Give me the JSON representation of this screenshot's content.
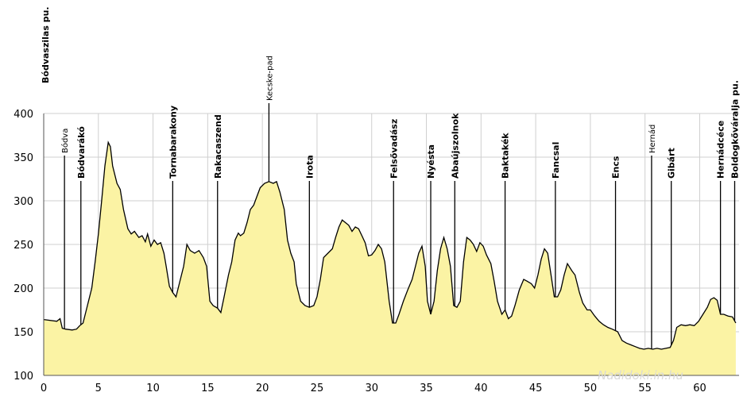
{
  "chart_data": {
    "type": "area",
    "xlim": [
      0,
      63
    ],
    "ylim": [
      100,
      400
    ],
    "x_ticks": [
      0,
      5,
      10,
      15,
      20,
      25,
      30,
      35,
      40,
      45,
      50,
      55,
      60
    ],
    "y_ticks": [
      100,
      150,
      200,
      250,
      300,
      350,
      400
    ],
    "grid": true,
    "fill_color": "#fbf3a4",
    "line_color": "#000000",
    "profile": [
      [
        0,
        164
      ],
      [
        1.2,
        162
      ],
      [
        1.5,
        165
      ],
      [
        1.7,
        154
      ],
      [
        2.0,
        153
      ],
      [
        2.6,
        152
      ],
      [
        3.0,
        153
      ],
      [
        3.3,
        157
      ],
      [
        3.6,
        160
      ],
      [
        4.0,
        180
      ],
      [
        4.4,
        200
      ],
      [
        4.7,
        230
      ],
      [
        5.0,
        262
      ],
      [
        5.3,
        300
      ],
      [
        5.6,
        340
      ],
      [
        5.9,
        367
      ],
      [
        6.1,
        362
      ],
      [
        6.3,
        340
      ],
      [
        6.7,
        320
      ],
      [
        7.0,
        313
      ],
      [
        7.3,
        290
      ],
      [
        7.7,
        268
      ],
      [
        8.0,
        262
      ],
      [
        8.3,
        265
      ],
      [
        8.7,
        258
      ],
      [
        9.0,
        260
      ],
      [
        9.3,
        253
      ],
      [
        9.5,
        262
      ],
      [
        9.8,
        248
      ],
      [
        10.1,
        255
      ],
      [
        10.4,
        250
      ],
      [
        10.7,
        252
      ],
      [
        11.0,
        240
      ],
      [
        11.2,
        225
      ],
      [
        11.5,
        202
      ],
      [
        11.8,
        195
      ],
      [
        12.1,
        190
      ],
      [
        12.4,
        205
      ],
      [
        12.8,
        225
      ],
      [
        13.1,
        250
      ],
      [
        13.4,
        243
      ],
      [
        13.8,
        240
      ],
      [
        14.2,
        243
      ],
      [
        14.6,
        235
      ],
      [
        14.9,
        225
      ],
      [
        15.2,
        185
      ],
      [
        15.5,
        180
      ],
      [
        15.9,
        177
      ],
      [
        16.2,
        172
      ],
      [
        16.5,
        190
      ],
      [
        16.9,
        215
      ],
      [
        17.2,
        230
      ],
      [
        17.5,
        255
      ],
      [
        17.8,
        263
      ],
      [
        18.0,
        260
      ],
      [
        18.3,
        263
      ],
      [
        18.6,
        275
      ],
      [
        18.9,
        290
      ],
      [
        19.2,
        295
      ],
      [
        19.5,
        305
      ],
      [
        19.8,
        315
      ],
      [
        20.2,
        320
      ],
      [
        20.6,
        322
      ],
      [
        21.0,
        320
      ],
      [
        21.3,
        322
      ],
      [
        21.6,
        310
      ],
      [
        22.0,
        290
      ],
      [
        22.3,
        255
      ],
      [
        22.6,
        240
      ],
      [
        22.9,
        230
      ],
      [
        23.1,
        205
      ],
      [
        23.5,
        185
      ],
      [
        23.9,
        180
      ],
      [
        24.3,
        178
      ],
      [
        24.7,
        180
      ],
      [
        25.0,
        190
      ],
      [
        25.3,
        210
      ],
      [
        25.6,
        235
      ],
      [
        26.0,
        240
      ],
      [
        26.4,
        245
      ],
      [
        26.7,
        258
      ],
      [
        27.0,
        270
      ],
      [
        27.3,
        278
      ],
      [
        27.6,
        275
      ],
      [
        27.9,
        272
      ],
      [
        28.2,
        265
      ],
      [
        28.5,
        270
      ],
      [
        28.8,
        268
      ],
      [
        29.1,
        260
      ],
      [
        29.4,
        252
      ],
      [
        29.7,
        237
      ],
      [
        30.0,
        238
      ],
      [
        30.3,
        243
      ],
      [
        30.6,
        250
      ],
      [
        30.9,
        245
      ],
      [
        31.2,
        230
      ],
      [
        31.6,
        185
      ],
      [
        31.9,
        160
      ],
      [
        32.2,
        160
      ],
      [
        32.5,
        170
      ],
      [
        32.9,
        185
      ],
      [
        33.3,
        198
      ],
      [
        33.7,
        210
      ],
      [
        34.0,
        225
      ],
      [
        34.3,
        240
      ],
      [
        34.6,
        248
      ],
      [
        34.9,
        225
      ],
      [
        35.1,
        185
      ],
      [
        35.4,
        170
      ],
      [
        35.7,
        185
      ],
      [
        36.0,
        220
      ],
      [
        36.3,
        245
      ],
      [
        36.6,
        258
      ],
      [
        36.9,
        245
      ],
      [
        37.2,
        225
      ],
      [
        37.5,
        180
      ],
      [
        37.8,
        178
      ],
      [
        38.1,
        185
      ],
      [
        38.4,
        230
      ],
      [
        38.7,
        258
      ],
      [
        39.0,
        255
      ],
      [
        39.3,
        250
      ],
      [
        39.6,
        242
      ],
      [
        39.9,
        252
      ],
      [
        40.2,
        248
      ],
      [
        40.5,
        238
      ],
      [
        40.9,
        228
      ],
      [
        41.2,
        208
      ],
      [
        41.5,
        185
      ],
      [
        41.9,
        170
      ],
      [
        42.2,
        175
      ],
      [
        42.5,
        165
      ],
      [
        42.8,
        168
      ],
      [
        43.1,
        180
      ],
      [
        43.5,
        198
      ],
      [
        43.9,
        210
      ],
      [
        44.2,
        208
      ],
      [
        44.6,
        205
      ],
      [
        44.9,
        200
      ],
      [
        45.2,
        215
      ],
      [
        45.5,
        233
      ],
      [
        45.8,
        245
      ],
      [
        46.1,
        240
      ],
      [
        46.4,
        215
      ],
      [
        46.7,
        190
      ],
      [
        47.0,
        190
      ],
      [
        47.3,
        198
      ],
      [
        47.6,
        215
      ],
      [
        47.9,
        228
      ],
      [
        48.3,
        220
      ],
      [
        48.6,
        215
      ],
      [
        49.0,
        195
      ],
      [
        49.3,
        183
      ],
      [
        49.7,
        175
      ],
      [
        50.0,
        175
      ],
      [
        50.4,
        168
      ],
      [
        50.8,
        162
      ],
      [
        51.2,
        158
      ],
      [
        51.6,
        155
      ],
      [
        52.0,
        153
      ],
      [
        52.5,
        150
      ],
      [
        52.9,
        140
      ],
      [
        53.3,
        137
      ],
      [
        53.7,
        135
      ],
      [
        54.1,
        133
      ],
      [
        54.5,
        131
      ],
      [
        54.9,
        130
      ],
      [
        55.3,
        131
      ],
      [
        55.7,
        130
      ],
      [
        56.1,
        131
      ],
      [
        56.5,
        130
      ],
      [
        56.9,
        131
      ],
      [
        57.3,
        132
      ],
      [
        57.6,
        140
      ],
      [
        57.9,
        155
      ],
      [
        58.3,
        158
      ],
      [
        58.7,
        157
      ],
      [
        59.1,
        158
      ],
      [
        59.5,
        157
      ],
      [
        59.9,
        162
      ],
      [
        60.3,
        170
      ],
      [
        60.7,
        178
      ],
      [
        61.0,
        187
      ],
      [
        61.3,
        189
      ],
      [
        61.6,
        186
      ],
      [
        61.9,
        170
      ],
      [
        62.2,
        170
      ],
      [
        62.6,
        168
      ],
      [
        63.0,
        167
      ],
      [
        63.3,
        160
      ]
    ],
    "waypoints": [
      {
        "name": "Bódvaszilas pu.",
        "x": 0,
        "style": "top"
      },
      {
        "name": "Bódva",
        "x": 1.9,
        "style": "river"
      },
      {
        "name": "Bódvarákó",
        "x": 3.4,
        "style": "normal"
      },
      {
        "name": "Tornabarakony",
        "x": 11.8,
        "style": "normal"
      },
      {
        "name": "Rakacaszend",
        "x": 15.9,
        "style": "normal"
      },
      {
        "name": "Kecske-pad",
        "x": 20.6,
        "style": "peak"
      },
      {
        "name": "Irota",
        "x": 24.3,
        "style": "normal"
      },
      {
        "name": "Felsővadász",
        "x": 32.0,
        "style": "normal"
      },
      {
        "name": "Nyésta",
        "x": 35.4,
        "style": "normal"
      },
      {
        "name": "Abaújszolnok",
        "x": 37.6,
        "style": "normal"
      },
      {
        "name": "Baktakék",
        "x": 42.2,
        "style": "normal"
      },
      {
        "name": "Fancsal",
        "x": 46.8,
        "style": "normal"
      },
      {
        "name": "Encs",
        "x": 52.3,
        "style": "normal"
      },
      {
        "name": "Hernád",
        "x": 55.6,
        "style": "river"
      },
      {
        "name": "Gibárt",
        "x": 57.4,
        "style": "normal"
      },
      {
        "name": "Hernádcéce",
        "x": 61.9,
        "style": "normal"
      },
      {
        "name": "Boldogkőváralja pu.",
        "x": 63.2,
        "style": "normal"
      }
    ]
  },
  "watermark": "Nadidoki.in.hu"
}
